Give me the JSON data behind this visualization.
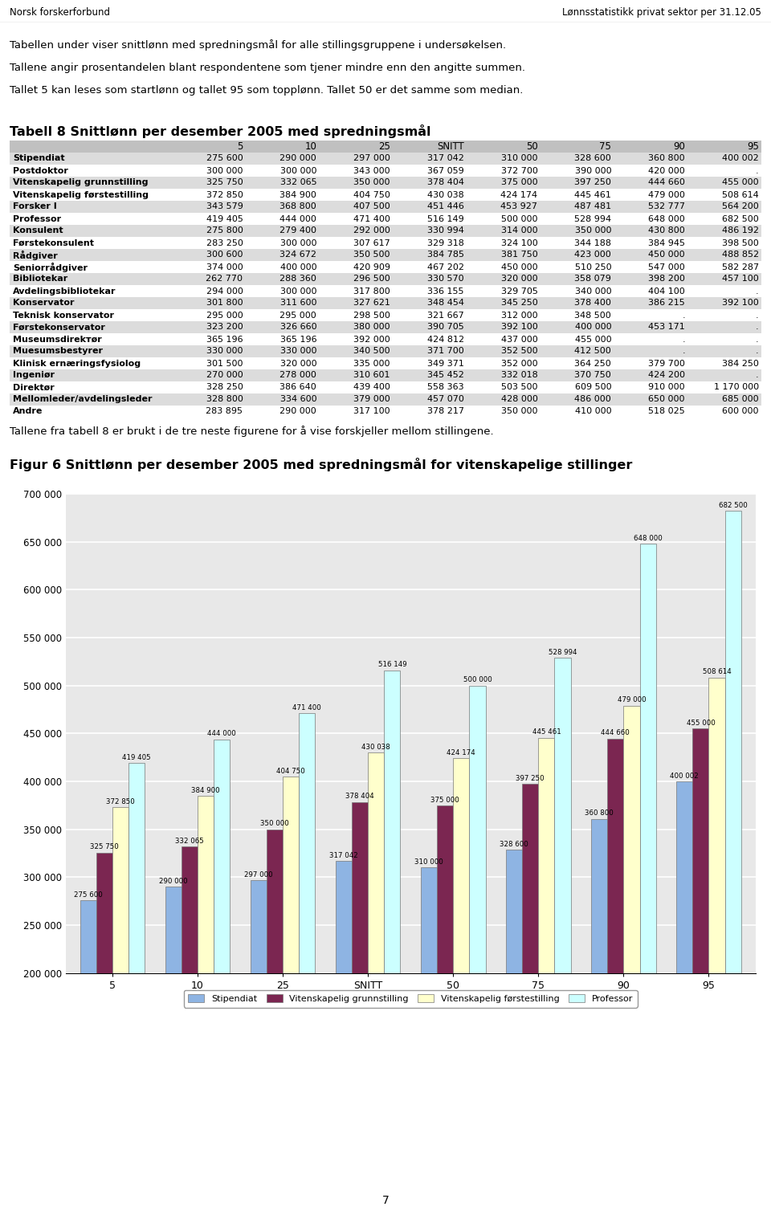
{
  "header_left": "Norsk forskerforbund",
  "header_right": "Lønnsstatistikk privat sektor per 31.12.05",
  "intro_text": [
    "Tabellen under viser snittlønn med spredningsmål for alle stillingsgruppene i undersøkelsen.",
    "Tallene angir prosentandelen blant respondentene som tjener mindre enn den angitte summen.",
    "Tallet 5 kan leses som startlønn og tallet 95 som topplønn. Tallet 50 er det samme som median."
  ],
  "table_title": "Tabell 8 Snittlønn per desember 2005 med spredningsmål",
  "col_headers": [
    "5",
    "10",
    "25",
    "SNITT",
    "50",
    "75",
    "90",
    "95"
  ],
  "rows": [
    {
      "name": "Stipendiat",
      "vals": [
        "275 600",
        "290 000",
        "297 000",
        "317 042",
        "310 000",
        "328 600",
        "360 800",
        "400 002"
      ]
    },
    {
      "name": "Postdoktor",
      "vals": [
        "300 000",
        "300 000",
        "343 000",
        "367 059",
        "372 700",
        "390 000",
        "420 000",
        "."
      ]
    },
    {
      "name": "Vitenskapelig grunnstilling",
      "vals": [
        "325 750",
        "332 065",
        "350 000",
        "378 404",
        "375 000",
        "397 250",
        "444 660",
        "455 000"
      ]
    },
    {
      "name": "Vitenskapelig førstestilling",
      "vals": [
        "372 850",
        "384 900",
        "404 750",
        "430 038",
        "424 174",
        "445 461",
        "479 000",
        "508 614"
      ]
    },
    {
      "name": "Forsker I",
      "vals": [
        "343 579",
        "368 800",
        "407 500",
        "451 446",
        "453 927",
        "487 481",
        "532 777",
        "564 200"
      ]
    },
    {
      "name": "Professor",
      "vals": [
        "419 405",
        "444 000",
        "471 400",
        "516 149",
        "500 000",
        "528 994",
        "648 000",
        "682 500"
      ]
    },
    {
      "name": "Konsulent",
      "vals": [
        "275 800",
        "279 400",
        "292 000",
        "330 994",
        "314 000",
        "350 000",
        "430 800",
        "486 192"
      ]
    },
    {
      "name": "Førstekonsulent",
      "vals": [
        "283 250",
        "300 000",
        "307 617",
        "329 318",
        "324 100",
        "344 188",
        "384 945",
        "398 500"
      ]
    },
    {
      "name": "Rådgiver",
      "vals": [
        "300 600",
        "324 672",
        "350 500",
        "384 785",
        "381 750",
        "423 000",
        "450 000",
        "488 852"
      ]
    },
    {
      "name": "Seniorrådgiver",
      "vals": [
        "374 000",
        "400 000",
        "420 909",
        "467 202",
        "450 000",
        "510 250",
        "547 000",
        "582 287"
      ]
    },
    {
      "name": "Bibliotekar",
      "vals": [
        "262 770",
        "288 360",
        "296 500",
        "330 570",
        "320 000",
        "358 079",
        "398 200",
        "457 100"
      ]
    },
    {
      "name": "Avdelingsbibliotekar",
      "vals": [
        "294 000",
        "300 000",
        "317 800",
        "336 155",
        "329 705",
        "340 000",
        "404 100",
        "."
      ]
    },
    {
      "name": "Konservator",
      "vals": [
        "301 800",
        "311 600",
        "327 621",
        "348 454",
        "345 250",
        "378 400",
        "386 215",
        "392 100"
      ]
    },
    {
      "name": "Teknisk konservator",
      "vals": [
        "295 000",
        "295 000",
        "298 500",
        "321 667",
        "312 000",
        "348 500",
        ".",
        "."
      ]
    },
    {
      "name": "Førstekonservator",
      "vals": [
        "323 200",
        "326 660",
        "380 000",
        "390 705",
        "392 100",
        "400 000",
        "453 171",
        "."
      ]
    },
    {
      "name": "Museumsdirekтør",
      "vals": [
        "365 196",
        "365 196",
        "392 000",
        "424 812",
        "437 000",
        "455 000",
        ".",
        "."
      ]
    },
    {
      "name": "Muesumsbestyrer",
      "vals": [
        "330 000",
        "330 000",
        "340 500",
        "371 700",
        "352 500",
        "412 500",
        ".",
        "."
      ]
    },
    {
      "name": "Klinisk ernæringsfysiolog",
      "vals": [
        "301 500",
        "320 000",
        "335 000",
        "349 371",
        "352 000",
        "364 250",
        "379 700",
        "384 250"
      ]
    },
    {
      "name": "Ingeniør",
      "vals": [
        "270 000",
        "278 000",
        "310 601",
        "345 452",
        "332 018",
        "370 750",
        "424 200",
        "."
      ]
    },
    {
      "name": "Direktør",
      "vals": [
        "328 250",
        "386 640",
        "439 400",
        "558 363",
        "503 500",
        "609 500",
        "910 000",
        "1 170 000"
      ]
    },
    {
      "name": "Mellomleder/avdelingsleder",
      "vals": [
        "328 800",
        "334 600",
        "379 000",
        "457 070",
        "428 000",
        "486 000",
        "650 000",
        "685 000"
      ]
    },
    {
      "name": "Andre",
      "vals": [
        "283 895",
        "290 000",
        "317 100",
        "378 217",
        "350 000",
        "410 000",
        "518 025",
        "600 000"
      ]
    }
  ],
  "below_table_text": "Tallene fra tabell 8 er brukt i de tre neste figurene for å vise forskjeller mellom stillingene.",
  "fig_title": "Figur 6 Snittlønn per desember 2005 med spredningsmål for vitenskapelige stillinger",
  "bar_groups": [
    "5",
    "10",
    "25",
    "SNITT",
    "50",
    "75",
    "90",
    "95"
  ],
  "series": [
    {
      "name": "Stipendiat",
      "color": "#8EB4E3",
      "values": [
        275600,
        290000,
        297000,
        317042,
        310000,
        328600,
        360800,
        400002
      ],
      "labels": [
        "275 600",
        "290 000",
        "297 000",
        "317 042",
        "310 000",
        "328 600",
        "360 800",
        "400 002"
      ]
    },
    {
      "name": "Vitenskapelig grunnstilling",
      "color": "#7B2651",
      "values": [
        325750,
        332065,
        350000,
        378404,
        375000,
        397250,
        444660,
        455000
      ],
      "labels": [
        "325 750",
        "332 065",
        "350 000",
        "378 404",
        "375 000",
        "397 250",
        "444 660",
        "455 000"
      ]
    },
    {
      "name": "Vitenskapelig førstestilling",
      "color": "#FFFFCC",
      "values": [
        372850,
        384900,
        404750,
        430038,
        424174,
        445461,
        479000,
        508614
      ],
      "labels": [
        "372 850",
        "384 900",
        "404 750",
        "430 038",
        "424 174",
        "445 461",
        "479 000",
        "508 614"
      ]
    },
    {
      "name": "Professor",
      "color": "#CCFFFF",
      "values": [
        419405,
        444000,
        471400,
        516149,
        500000,
        528994,
        648000,
        682500
      ],
      "labels": [
        "419 405",
        "444 000",
        "471 400",
        "516 149",
        "500 000",
        "528 994",
        "648 000",
        "682 500"
      ]
    }
  ],
  "ylim": [
    200000,
    700000
  ],
  "yticks": [
    200000,
    250000,
    300000,
    350000,
    400000,
    450000,
    500000,
    550000,
    600000,
    650000,
    700000
  ],
  "page_number": "7",
  "bar_width": 0.19
}
